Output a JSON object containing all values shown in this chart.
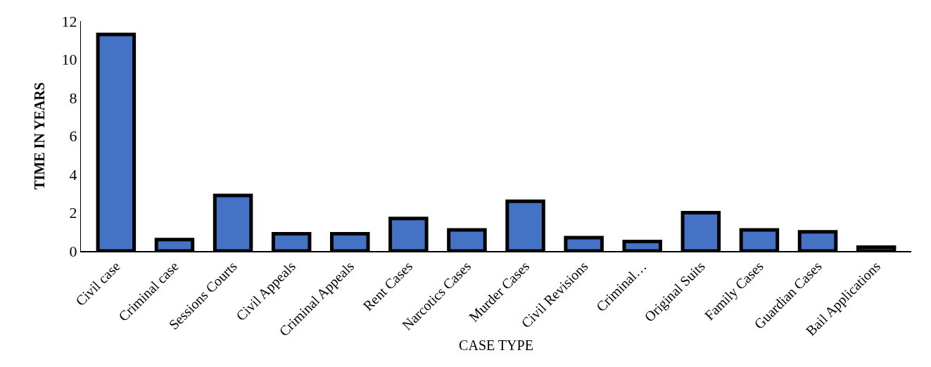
{
  "chart_data": {
    "type": "bar",
    "xlabel": "CASE TYPE",
    "ylabel": "TIME IN YEARS",
    "categories": [
      "Civil case",
      "Criminal case",
      "Sessions Courts",
      "Civil Appeals",
      "Criminal Appeals",
      "Rent Cases",
      "Narcotics Cases",
      "Murder Cases",
      "Civil Revisions",
      "Criminal…",
      "Original Suits",
      "Family Cases",
      "Guardian Cases",
      "Bail Applications"
    ],
    "values": [
      11.3,
      0.6,
      2.9,
      0.9,
      0.9,
      1.7,
      1.1,
      2.6,
      0.7,
      0.5,
      2.0,
      1.1,
      1.0,
      0.2
    ],
    "color": "#4472c4",
    "ylim": [
      0,
      12
    ],
    "yticks": [
      0,
      2,
      4,
      6,
      8,
      10,
      12
    ],
    "grid": false
  }
}
